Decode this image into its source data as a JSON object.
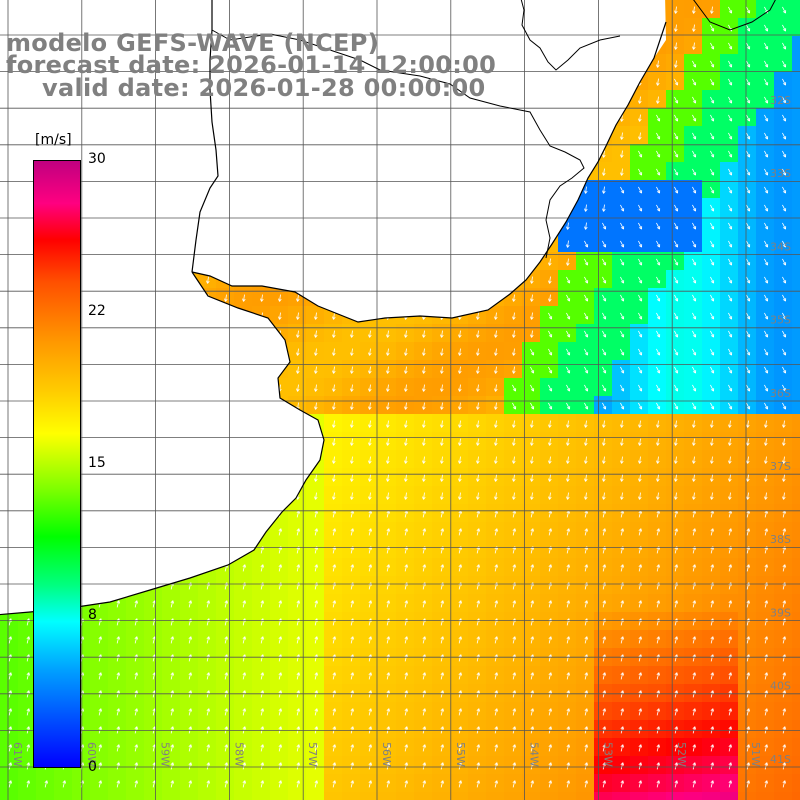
{
  "title": {
    "line1": "modelo GEFS-WAVE (NCEP)",
    "line2": "forecast date: 2026-01-14 12:00:00",
    "line3": "valid date: 2026-01-28 00:00:00"
  },
  "colorbar": {
    "unit": "[m/s]",
    "ticks": [
      {
        "label": "30",
        "value": 30
      },
      {
        "label": "22",
        "value": 22
      },
      {
        "label": "15",
        "value": 15
      },
      {
        "label": "8",
        "value": 8
      },
      {
        "label": "0",
        "value": 0
      }
    ],
    "min": 0,
    "max": 30
  },
  "map": {
    "lat_labels": [
      "32S",
      "33S",
      "34S",
      "35S",
      "36S",
      "37S",
      "38S",
      "39S",
      "40S",
      "41S"
    ],
    "lon_labels": [
      "61W",
      "60W",
      "59W",
      "58W",
      "57W",
      "56W",
      "55W",
      "54W",
      "53W",
      "52W",
      "51W"
    ],
    "colors": {
      "land": "#ffffff",
      "coast": "#000000",
      "grid": "#555555",
      "arrow": "#ffffff",
      "label": "#808080"
    },
    "wind_field": "gridded wind speed with direction arrows"
  }
}
